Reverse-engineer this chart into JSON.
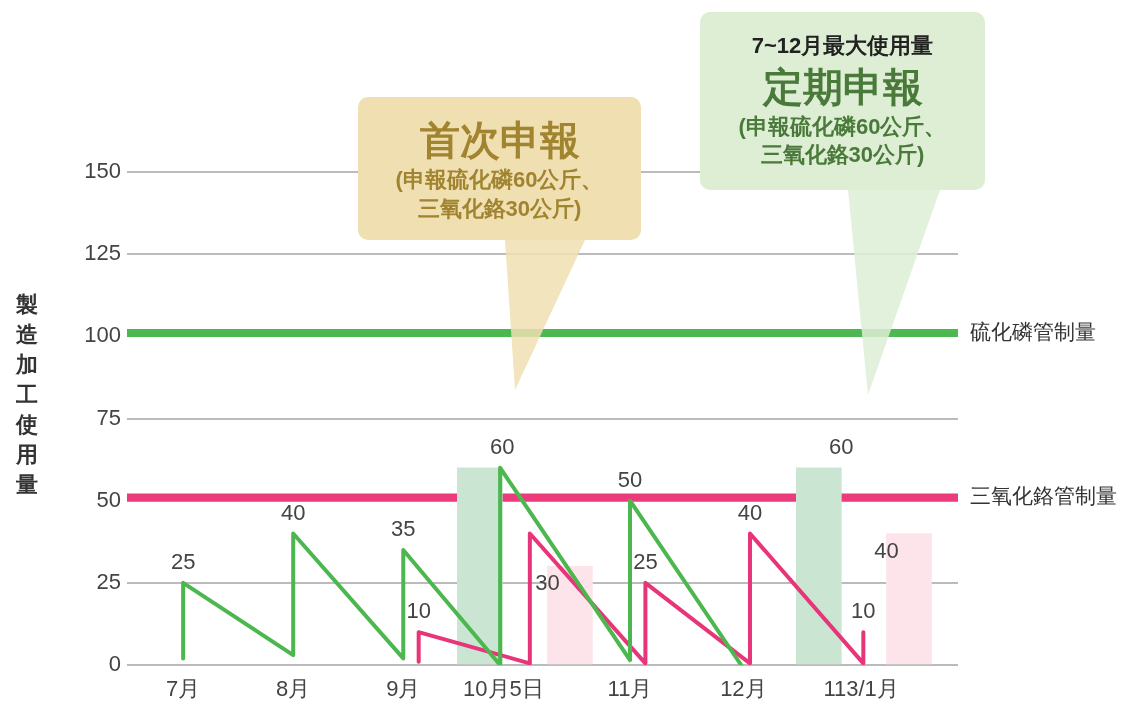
{
  "chart_data": {
    "type": "line",
    "ylabel": "製造加工使用量",
    "xlim": [
      6.49,
      14.04
    ],
    "xticks": [
      {
        "value": 7,
        "label": "7月"
      },
      {
        "value": 8,
        "label": "8月"
      },
      {
        "value": 9,
        "label": "9月"
      },
      {
        "value": 9.91,
        "label": "10月5日"
      },
      {
        "value": 11.06,
        "label": "11月"
      },
      {
        "value": 12.09,
        "label": "12月"
      },
      {
        "value": 13.16,
        "label": "113/1月"
      }
    ],
    "ylim": [
      0,
      150
    ],
    "yticks": [
      0,
      25,
      50,
      75,
      100,
      125,
      150
    ],
    "grid": "y",
    "legend": false,
    "marker": "none",
    "line_style": "solid",
    "series": [
      {
        "type": "bar",
        "color": "#cae6d2",
        "x": [
          9.9,
          12.98
        ],
        "values": [
          60,
          60
        ],
        "value_labels": [
          "60",
          "60"
        ]
      },
      {
        "type": "bar",
        "color": "#fce4ea",
        "x": [
          10.31,
          13.39
        ],
        "values": [
          30,
          40
        ],
        "value_labels": [
          "30",
          "40"
        ]
      },
      {
        "color": "#4cb74f",
        "x": [
          7.0,
          7.0,
          8.0,
          8.0,
          9.0,
          9.0,
          9.88,
          9.88,
          11.06,
          11.06,
          12.07
        ],
        "values": [
          2,
          25,
          3,
          40,
          2,
          35,
          0,
          60,
          1.5,
          50,
          0
        ],
        "value_labels": [
          null,
          "25",
          null,
          "40",
          null,
          "35",
          null,
          null,
          null,
          "50",
          null
        ]
      },
      {
        "color": "#e8357a",
        "x": [
          9.14,
          9.14,
          10.15,
          10.15,
          11.2,
          11.2,
          12.15,
          12.15,
          13.18,
          13.18
        ],
        "values": [
          1,
          10,
          0.5,
          40,
          0.5,
          25,
          0.5,
          40,
          0.5,
          10
        ],
        "value_labels": [
          null,
          "10",
          null,
          null,
          null,
          "25",
          null,
          "40",
          null,
          "10"
        ]
      }
    ],
    "ref_lines": [
      {
        "axis": "y",
        "value": 101,
        "label": "硫化磷管制量",
        "color": "#4db751"
      },
      {
        "axis": "y",
        "value": 51,
        "label": "三氧化鉻管制量",
        "color": "#ec3b7d"
      }
    ],
    "annotations": [
      "首次申報",
      "(申報硫化磷60公斤、三氧化鉻30公斤)",
      "7~12月最大使用量",
      "定期申報",
      "(申報硫化磷60公斤、三氧化鉻30公斤)"
    ]
  }
}
